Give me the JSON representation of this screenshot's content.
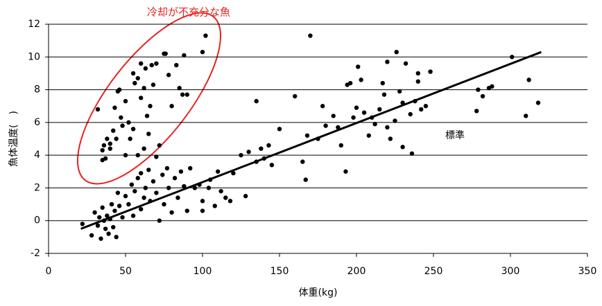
{
  "chart_data": {
    "type": "scatter",
    "xlabel": "体重(kg)",
    "ylabel": "魚体温度(　)",
    "annotations": [
      "冷却が不充分な魚",
      "標準"
    ],
    "xlim": [
      0,
      350
    ],
    "xticks": [
      0,
      50,
      100,
      150,
      200,
      250,
      300,
      350
    ],
    "ylim": [
      -2,
      12
    ],
    "yticks": [
      -2,
      0,
      2,
      4,
      6,
      8,
      10,
      12
    ],
    "grid": true,
    "series": [
      {
        "color": "#000000",
        "x": [
          32,
          35,
          36,
          37,
          38,
          40,
          42,
          43,
          45,
          46,
          47,
          48,
          50,
          52,
          53,
          55,
          56,
          58,
          60,
          60,
          62,
          63,
          64,
          65,
          66,
          67,
          68,
          70,
          72,
          75,
          76,
          78,
          80,
          83,
          85,
          87,
          88,
          90,
          100,
          102,
          40,
          44,
          55,
          58,
          62,
          50,
          35,
          70,
          22,
          28,
          30,
          32,
          33,
          34,
          35,
          36,
          37,
          38,
          39,
          40,
          41,
          42,
          43,
          44,
          45,
          46,
          48,
          50,
          52,
          54,
          55,
          56,
          58,
          60,
          60,
          62,
          63,
          65,
          66,
          68,
          70,
          72,
          74,
          75,
          77,
          78,
          80,
          82,
          84,
          86,
          88,
          90,
          92,
          95,
          98,
          100,
          105,
          110,
          112,
          118,
          120,
          125,
          128,
          130,
          135,
          138,
          140,
          143,
          150,
          145,
          100,
          104,
          108,
          115,
          135,
          160,
          165,
          167,
          168,
          170,
          175,
          178,
          180,
          185,
          188,
          190,
          193,
          194,
          196,
          198,
          200,
          201,
          203,
          205,
          208,
          210,
          212,
          215,
          217,
          218,
          220,
          222,
          225,
          226,
          228,
          230,
          232,
          235,
          236,
          238,
          240,
          242,
          245,
          248,
          230,
          220,
          240,
          278,
          279,
          282,
          286,
          288,
          301,
          310,
          312,
          318
        ],
        "values": [
          6.8,
          4.3,
          4.6,
          3.8,
          5.0,
          4.7,
          5.5,
          6.9,
          7.9,
          8.0,
          6.3,
          5.8,
          7.3,
          6.0,
          5.0,
          9.0,
          8.4,
          8.7,
          9.6,
          7.5,
          8.1,
          9.3,
          6.4,
          5.3,
          7.0,
          9.5,
          8.3,
          9.6,
          4.6,
          10.2,
          10.2,
          8.9,
          7.0,
          9.5,
          8.1,
          7.7,
          10.1,
          7.7,
          10.3,
          11.3,
          4.4,
          5.0,
          5.6,
          4.0,
          4.4,
          4.0,
          3.7,
          3.9,
          -0.2,
          -0.9,
          0.5,
          -0.3,
          0.2,
          -1.1,
          0.8,
          0.0,
          -0.5,
          0.3,
          -0.8,
          0.1,
          1.0,
          -0.4,
          0.6,
          -1.0,
          1.7,
          0.9,
          0.2,
          1.5,
          1.0,
          2.2,
          0.3,
          1.8,
          2.6,
          0.7,
          2.9,
          1.4,
          2.0,
          3.1,
          1.2,
          2.4,
          1.7,
          0.0,
          2.8,
          1.0,
          3.2,
          2.0,
          0.5,
          2.6,
          1.4,
          3.0,
          2.1,
          0.6,
          3.2,
          2.0,
          2.2,
          1.2,
          2.5,
          3.0,
          1.8,
          1.2,
          2.9,
          4.0,
          1.5,
          4.2,
          3.6,
          4.4,
          3.8,
          4.6,
          5.6,
          3.4,
          0.6,
          2.0,
          0.9,
          1.4,
          7.3,
          7.6,
          3.6,
          2.5,
          5.2,
          11.3,
          5.0,
          7.0,
          5.8,
          6.4,
          5.7,
          4.6,
          3.0,
          8.3,
          8.4,
          6.3,
          6.9,
          9.4,
          8.6,
          6.6,
          5.2,
          6.3,
          5.9,
          6.8,
          8.4,
          7.7,
          9.7,
          5.0,
          6.1,
          10.3,
          7.9,
          7.2,
          9.6,
          6.5,
          4.1,
          7.3,
          9.0,
          6.8,
          7.0,
          9.1,
          4.5,
          5.7,
          8.5,
          6.7,
          8.0,
          7.6,
          8.1,
          8.2,
          10.0,
          6.4,
          8.6,
          7.2
        ]
      }
    ],
    "trend": {
      "color": "#000000",
      "x": [
        21,
        320
      ],
      "values": [
        -0.5,
        10.3
      ]
    }
  }
}
